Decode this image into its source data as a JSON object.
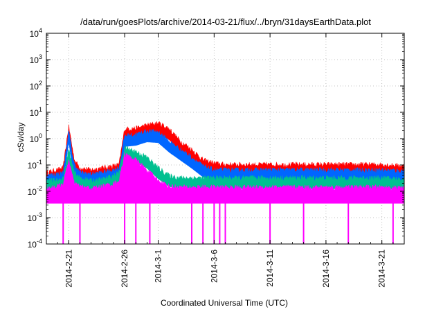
{
  "chart_data": {
    "type": "line",
    "title": "/data/run/goesPlots/archive/2014-03-21/flux/../bryn/31daysEarthData.plot",
    "xlabel": "Coordinated Universal Time (UTC)",
    "ylabel": "cSv/day",
    "yscale": "log",
    "ylim": [
      0.0001,
      10000
    ],
    "xlim": [
      "2014-02-19",
      "2014-03-23"
    ],
    "y_ticks": [
      {
        "value": 0.0001,
        "base": "10",
        "exp": "-4"
      },
      {
        "value": 0.001,
        "base": "10",
        "exp": "-3"
      },
      {
        "value": 0.01,
        "base": "10",
        "exp": "-2"
      },
      {
        "value": 0.1,
        "base": "10",
        "exp": "-1"
      },
      {
        "value": 1,
        "base": "10",
        "exp": "0"
      },
      {
        "value": 10,
        "base": "10",
        "exp": "1"
      },
      {
        "value": 100,
        "base": "10",
        "exp": "2"
      },
      {
        "value": 1000,
        "base": "10",
        "exp": "3"
      },
      {
        "value": 10000,
        "base": "10",
        "exp": "4"
      }
    ],
    "x_ticks": [
      {
        "value": "2014-02-21",
        "label": "2014-2-21"
      },
      {
        "value": "2014-02-26",
        "label": "2014-2-26"
      },
      {
        "value": "2014-03-01",
        "label": "2014-3-1"
      },
      {
        "value": "2014-03-06",
        "label": "2014-3-6"
      },
      {
        "value": "2014-03-11",
        "label": "2014-3-11"
      },
      {
        "value": "2014-03-16",
        "label": "2014-3-16"
      },
      {
        "value": "2014-03-21",
        "label": "2014-3-21"
      }
    ],
    "grid": true,
    "series": [
      {
        "color": "#ff0000",
        "points": [
          [
            "2014-02-19",
            0.04
          ],
          [
            "2014-02-20",
            0.05
          ],
          [
            "2014-02-20T12:00",
            0.06
          ],
          [
            "2014-02-21",
            2.3
          ],
          [
            "2014-02-21T06:00",
            0.5
          ],
          [
            "2014-02-21T12:00",
            0.12
          ],
          [
            "2014-02-22",
            0.06
          ],
          [
            "2014-02-23",
            0.05
          ],
          [
            "2014-02-24",
            0.06
          ],
          [
            "2014-02-25",
            0.07
          ],
          [
            "2014-02-25T12:00",
            0.08
          ],
          [
            "2014-02-26",
            1.8
          ],
          [
            "2014-02-27",
            1.9
          ],
          [
            "2014-02-28",
            2.5
          ],
          [
            "2014-03-01",
            3.0
          ],
          [
            "2014-03-02",
            1.8
          ],
          [
            "2014-03-03",
            0.6
          ],
          [
            "2014-03-04",
            0.3
          ],
          [
            "2014-03-05",
            0.12
          ],
          [
            "2014-03-06",
            0.09
          ],
          [
            "2014-03-07",
            0.08
          ],
          [
            "2014-03-09",
            0.08
          ],
          [
            "2014-03-11",
            0.08
          ],
          [
            "2014-03-13",
            0.08
          ],
          [
            "2014-03-15",
            0.08
          ],
          [
            "2014-03-17",
            0.08
          ],
          [
            "2014-03-19",
            0.08
          ],
          [
            "2014-03-21",
            0.08
          ],
          [
            "2014-03-23",
            0.07
          ]
        ]
      },
      {
        "color": "#0066ff",
        "points": [
          [
            "2014-02-19",
            0.03
          ],
          [
            "2014-02-20",
            0.035
          ],
          [
            "2014-02-20T12:00",
            0.04
          ],
          [
            "2014-02-21",
            1.5
          ],
          [
            "2014-02-21T06:00",
            0.3
          ],
          [
            "2014-02-21T12:00",
            0.08
          ],
          [
            "2014-02-22",
            0.04
          ],
          [
            "2014-02-23",
            0.035
          ],
          [
            "2014-02-24",
            0.04
          ],
          [
            "2014-02-25",
            0.05
          ],
          [
            "2014-02-25T12:00",
            0.06
          ],
          [
            "2014-02-26",
            1.0
          ],
          [
            "2014-02-27",
            1.1
          ],
          [
            "2014-02-28",
            1.5
          ],
          [
            "2014-03-01",
            1.4
          ],
          [
            "2014-03-02",
            0.6
          ],
          [
            "2014-03-03",
            0.3
          ],
          [
            "2014-03-04",
            0.15
          ],
          [
            "2014-03-05",
            0.07
          ],
          [
            "2014-03-06",
            0.05
          ],
          [
            "2014-03-07",
            0.05
          ],
          [
            "2014-03-09",
            0.05
          ],
          [
            "2014-03-11",
            0.05
          ],
          [
            "2014-03-13",
            0.05
          ],
          [
            "2014-03-15",
            0.05
          ],
          [
            "2014-03-17",
            0.05
          ],
          [
            "2014-03-19",
            0.05
          ],
          [
            "2014-03-21",
            0.05
          ],
          [
            "2014-03-23",
            0.045
          ]
        ]
      },
      {
        "color": "#00c090",
        "points": [
          [
            "2014-02-19",
            0.02
          ],
          [
            "2014-02-20",
            0.02
          ],
          [
            "2014-02-20T12:00",
            0.025
          ],
          [
            "2014-02-21",
            0.3
          ],
          [
            "2014-02-21T06:00",
            0.1
          ],
          [
            "2014-02-21T12:00",
            0.04
          ],
          [
            "2014-02-22",
            0.025
          ],
          [
            "2014-02-23",
            0.02
          ],
          [
            "2014-02-24",
            0.022
          ],
          [
            "2014-02-25",
            0.03
          ],
          [
            "2014-02-25T12:00",
            0.04
          ],
          [
            "2014-02-26",
            0.35
          ],
          [
            "2014-02-27",
            0.25
          ],
          [
            "2014-02-28",
            0.15
          ],
          [
            "2014-03-01",
            0.06
          ],
          [
            "2014-03-02",
            0.03
          ],
          [
            "2014-03-03",
            0.025
          ],
          [
            "2014-03-04",
            0.025
          ],
          [
            "2014-03-05",
            0.025
          ],
          [
            "2014-03-07",
            0.025
          ],
          [
            "2014-03-09",
            0.025
          ],
          [
            "2014-03-11",
            0.025
          ],
          [
            "2014-03-13",
            0.025
          ],
          [
            "2014-03-15",
            0.025
          ],
          [
            "2014-03-17",
            0.025
          ],
          [
            "2014-03-19",
            0.025
          ],
          [
            "2014-03-21",
            0.025
          ],
          [
            "2014-03-23",
            0.022
          ]
        ]
      },
      {
        "color": "#ff00ff",
        "points": [
          [
            "2014-02-19",
            0.01
          ],
          [
            "2014-02-20",
            0.012
          ],
          [
            "2014-02-20T12:00",
            0.015
          ],
          [
            "2014-02-21",
            0.12
          ],
          [
            "2014-02-21T06:00",
            0.04
          ],
          [
            "2014-02-21T12:00",
            0.015
          ],
          [
            "2014-02-22",
            0.012
          ],
          [
            "2014-02-23",
            0.01
          ],
          [
            "2014-02-24",
            0.012
          ],
          [
            "2014-02-25",
            0.015
          ],
          [
            "2014-02-25T12:00",
            0.02
          ],
          [
            "2014-02-26",
            0.2
          ],
          [
            "2014-02-27",
            0.12
          ],
          [
            "2014-02-28",
            0.05
          ],
          [
            "2014-03-01",
            0.02
          ],
          [
            "2014-03-02",
            0.012
          ],
          [
            "2014-03-03",
            0.011
          ],
          [
            "2014-03-05",
            0.011
          ],
          [
            "2014-03-07",
            0.011
          ],
          [
            "2014-03-09",
            0.011
          ],
          [
            "2014-03-11",
            0.011
          ],
          [
            "2014-03-13",
            0.011
          ],
          [
            "2014-03-15",
            0.011
          ],
          [
            "2014-03-17",
            0.011
          ],
          [
            "2014-03-19",
            0.011
          ],
          [
            "2014-03-21",
            0.011
          ],
          [
            "2014-03-23",
            0.01
          ]
        ]
      }
    ],
    "magenta_floor": 0.0035,
    "dropouts": [
      "2014-02-20T12:00",
      "2014-02-22",
      "2014-02-26",
      "2014-02-27",
      "2014-02-28T06:00",
      "2014-03-04",
      "2014-03-05",
      "2014-03-06",
      "2014-03-06T12:00",
      "2014-03-07",
      "2014-03-11",
      "2014-03-14",
      "2014-03-18",
      "2014-03-22"
    ]
  }
}
